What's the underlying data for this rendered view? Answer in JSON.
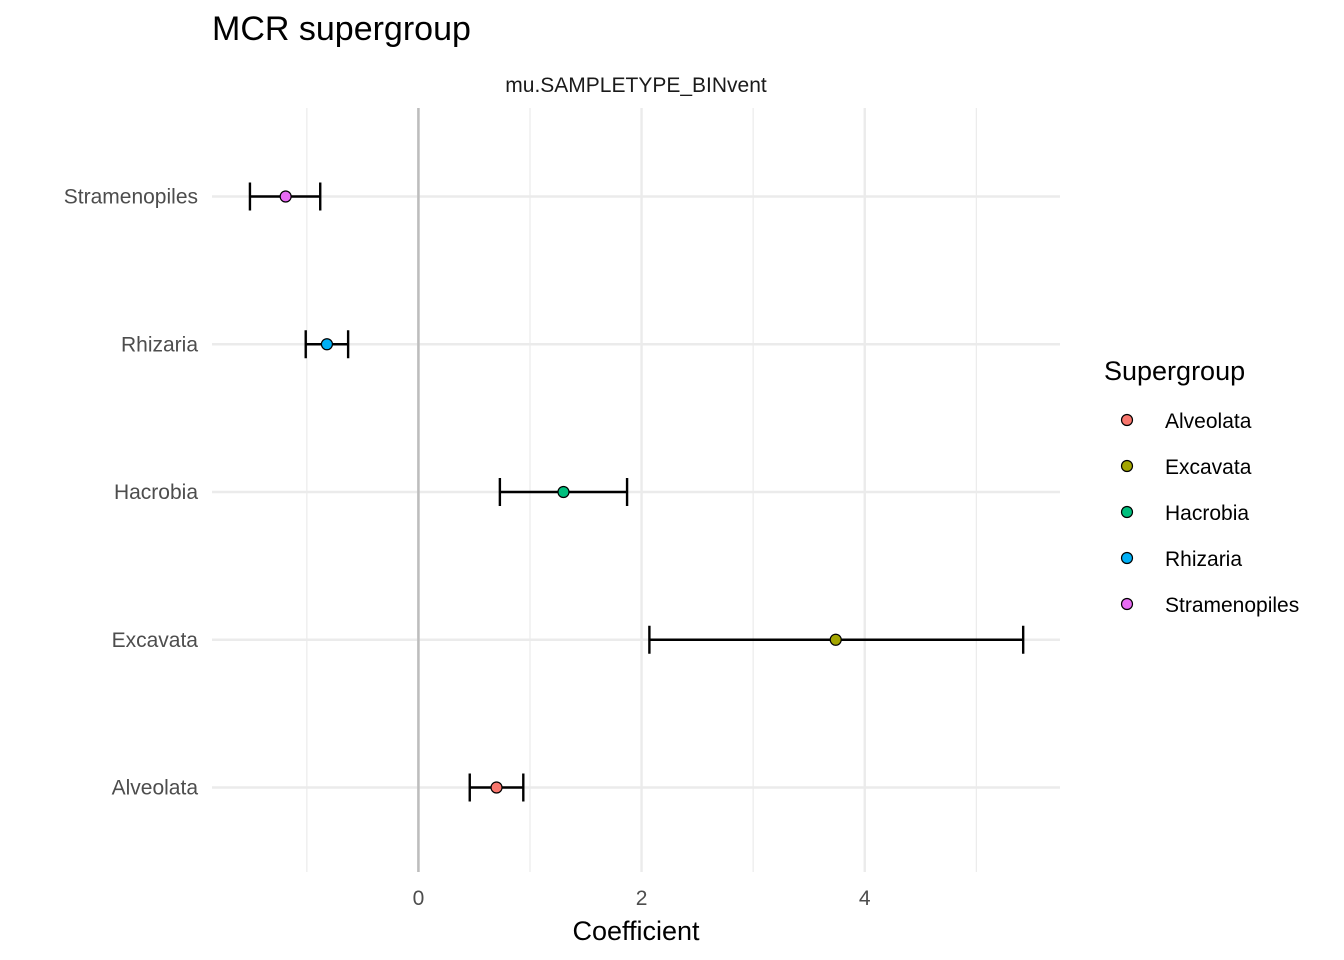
{
  "chart_data": {
    "type": "scatter",
    "title": "MCR supergroup",
    "facet_label": "mu.SAMPLETYPE_BINvent",
    "xlabel": "Coefficient",
    "ylabel": "",
    "xlim": [
      -1.85,
      5.75
    ],
    "x_ticks": [
      0,
      2,
      4
    ],
    "x_minor_ticks": [
      -1,
      1,
      3,
      5
    ],
    "reference_line_x": 0,
    "categories": [
      "Alveolata",
      "Excavata",
      "Hacrobia",
      "Rhizaria",
      "Stramenopiles"
    ],
    "series": [
      {
        "name": "Alveolata",
        "estimate": 0.7,
        "lower": 0.46,
        "upper": 0.94,
        "color": "#F8766D"
      },
      {
        "name": "Excavata",
        "estimate": 3.74,
        "lower": 2.07,
        "upper": 5.42,
        "color": "#A3A500"
      },
      {
        "name": "Hacrobia",
        "estimate": 1.3,
        "lower": 0.73,
        "upper": 1.87,
        "color": "#00BF7D"
      },
      {
        "name": "Rhizaria",
        "estimate": -0.82,
        "lower": -1.01,
        "upper": -0.63,
        "color": "#00B0F6"
      },
      {
        "name": "Stramenopiles",
        "estimate": -1.19,
        "lower": -1.51,
        "upper": -0.88,
        "color": "#E76BF3"
      }
    ],
    "grid": true,
    "legend": {
      "title": "Supergroup",
      "placement": "right"
    }
  }
}
